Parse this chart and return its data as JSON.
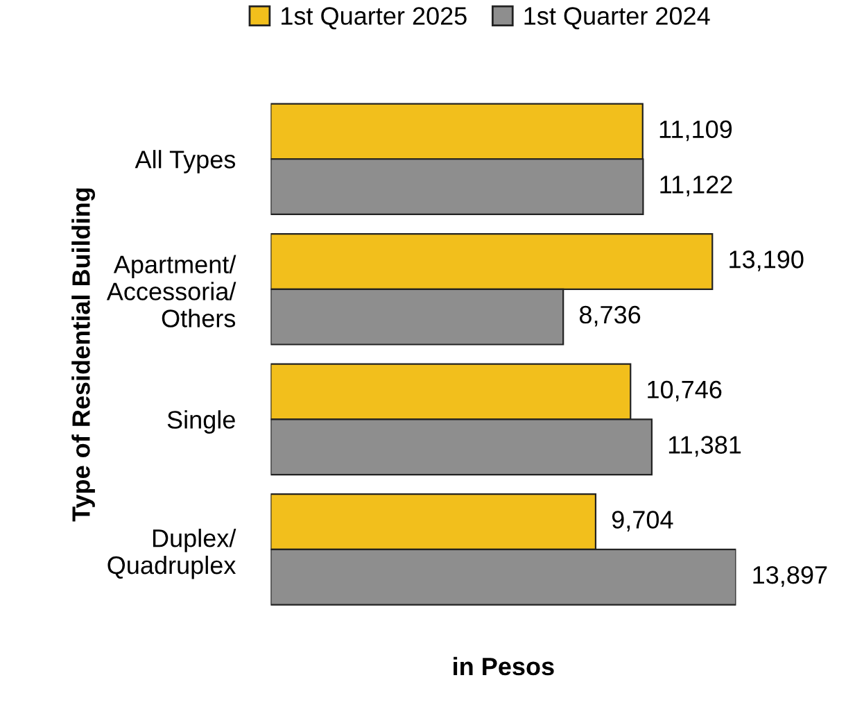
{
  "chart_data": {
    "type": "bar",
    "orientation": "horizontal",
    "categories": [
      "All Types",
      "Apartment/\nAccessoria/\nOthers",
      "Single",
      "Duplex/\nQuadruplex"
    ],
    "series": [
      {
        "name": "1st Quarter 2025",
        "color": "#f2bf1c",
        "values": [
          11109,
          13190,
          10746,
          9704
        ],
        "value_labels": [
          "11,109",
          "13,190",
          "10,746",
          "9,704"
        ]
      },
      {
        "name": "1st Quarter 2024",
        "color": "#8e8e8e",
        "values": [
          11122,
          8736,
          11381,
          13897
        ],
        "value_labels": [
          "11,122",
          "8,736",
          "11,381",
          "13,897"
        ]
      }
    ],
    "xlabel": "in Pesos",
    "ylabel": "Type of Residential Building",
    "legend": "top",
    "grid": false,
    "tick_labels": "y"
  }
}
